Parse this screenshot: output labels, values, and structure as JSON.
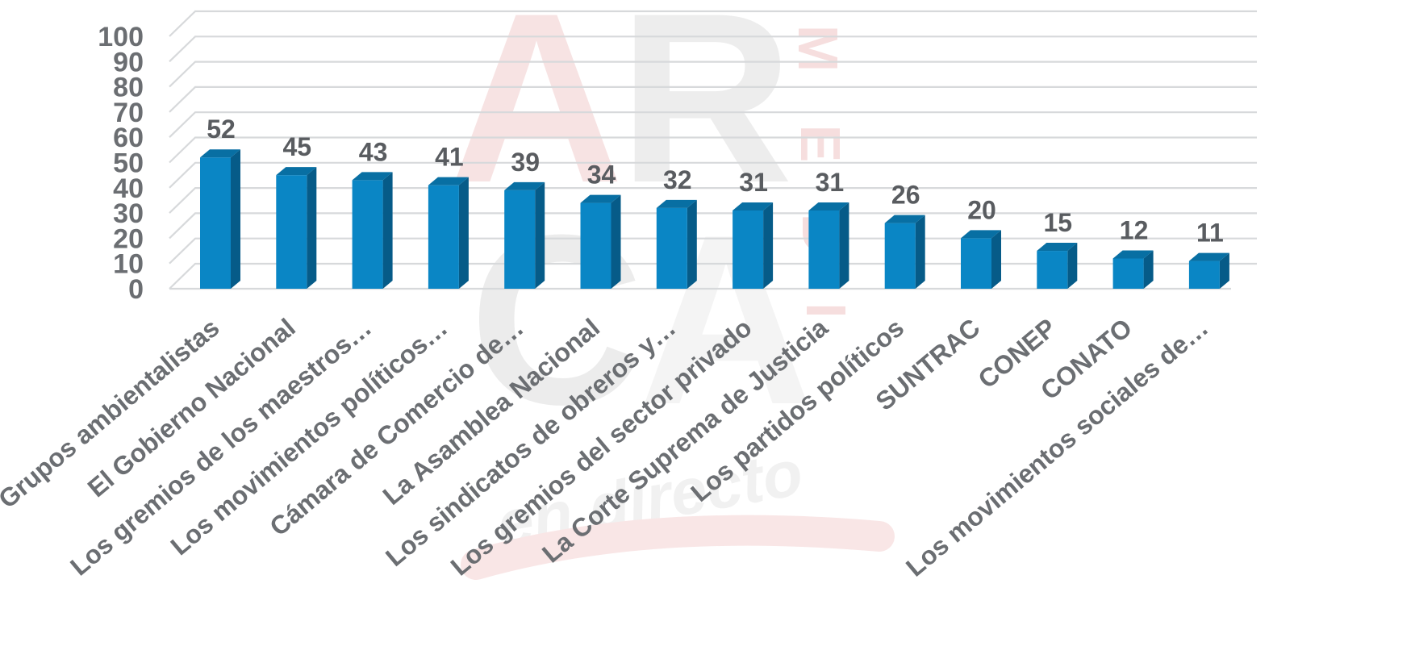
{
  "chart_data": {
    "type": "bar",
    "title": "",
    "xlabel": "",
    "ylabel": "",
    "ylim": [
      0,
      100
    ],
    "yticks": [
      0,
      10,
      20,
      30,
      40,
      50,
      60,
      70,
      80,
      90,
      100
    ],
    "grid": true,
    "legend": "none",
    "categories": [
      "Grupos ambientalistas",
      "El Gobierno Nacional",
      "Los gremios de los maestros…",
      "Los movimientos políticos…",
      "Cámara de Comercio de…",
      "La Asamblea Nacional",
      "Los sindicatos de obreros y…",
      "Los gremios del sector privado",
      "La Corte Suprema de Justicia",
      "Los partidos políticos",
      "SUNTRAC",
      "CONEP",
      "CONATO",
      "Los movimientos sociales de…"
    ],
    "values": [
      52,
      45,
      43,
      41,
      39,
      34,
      32,
      31,
      31,
      26,
      20,
      15,
      12,
      11
    ],
    "colors": {
      "bar_front": "#0a86c5",
      "bar_side": "#065b88",
      "bar_top": "#086fa3"
    }
  },
  "watermark": {
    "letters": [
      "A",
      "R",
      "C",
      "A"
    ],
    "vertical_text": [
      "M",
      "E",
      "D",
      "I"
    ],
    "script_text": "en directo"
  }
}
